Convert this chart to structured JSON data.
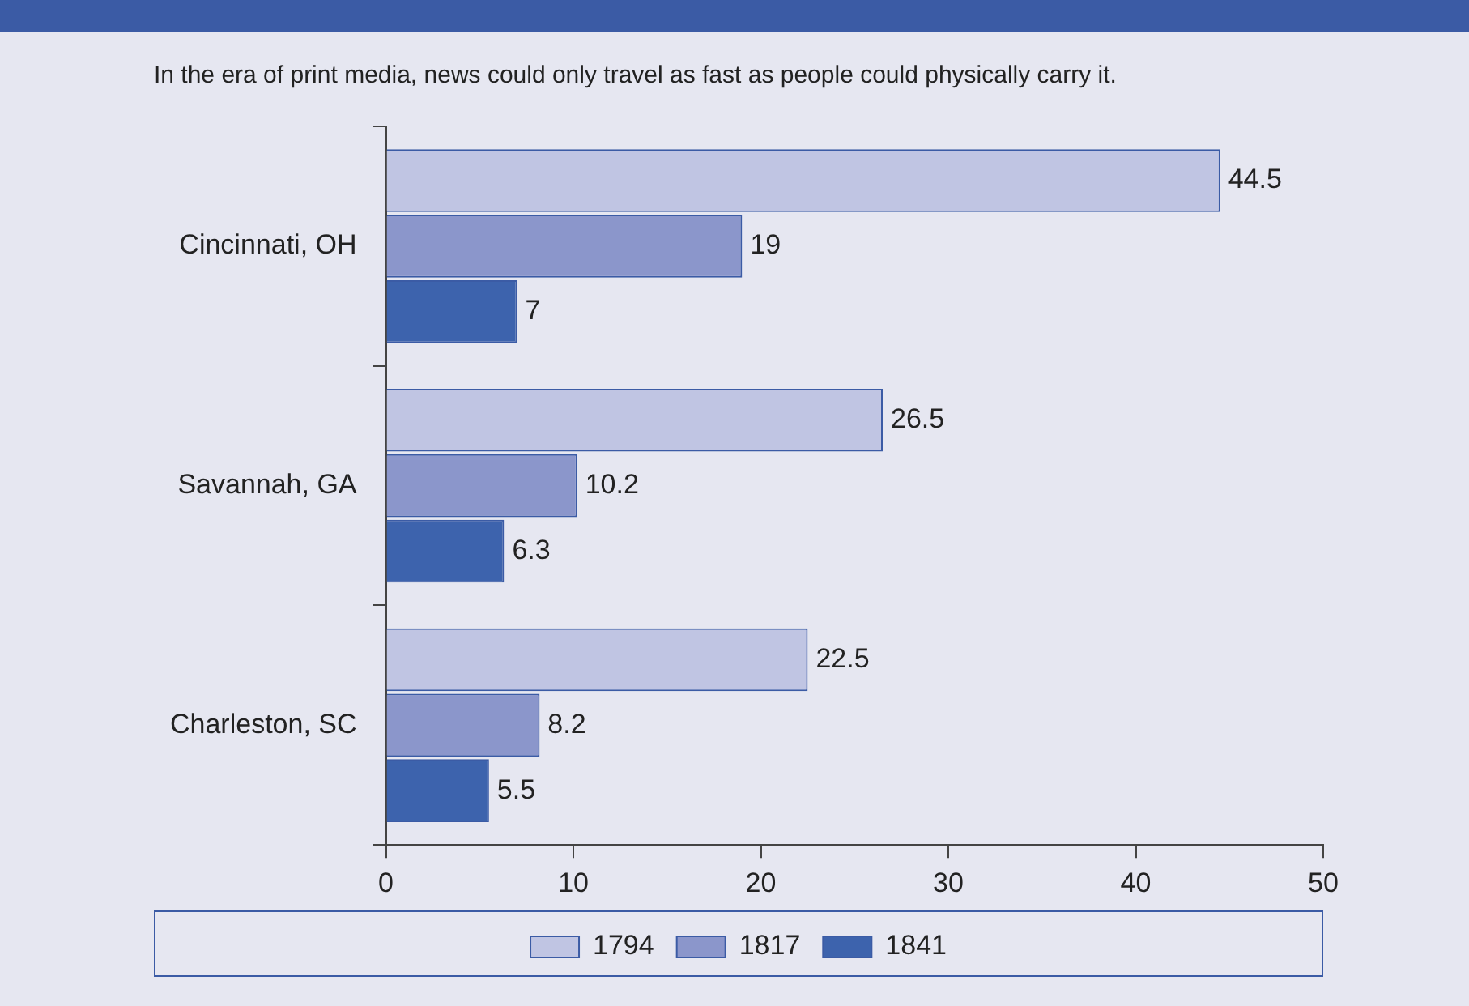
{
  "chart_data": {
    "type": "bar",
    "orientation": "horizontal",
    "title": "In the era of print media, news could only travel as fast as people could physically carry it.",
    "categories": [
      "Cincinnati, OH",
      "Savannah, GA",
      "Charleston, SC"
    ],
    "series": [
      {
        "name": "1794",
        "color": "#c0c5e3",
        "values": [
          44.5,
          26.5,
          22.5
        ]
      },
      {
        "name": "1817",
        "color": "#8b96cb",
        "values": [
          19,
          10.2,
          8.2
        ]
      },
      {
        "name": "1841",
        "color": "#3d63ad",
        "values": [
          7,
          6.3,
          5.5
        ]
      }
    ],
    "xlim": [
      0,
      50
    ],
    "xticks": [
      0,
      10,
      20,
      30,
      40,
      50
    ],
    "grid": false,
    "legend": "bottom",
    "data_labels": true
  }
}
